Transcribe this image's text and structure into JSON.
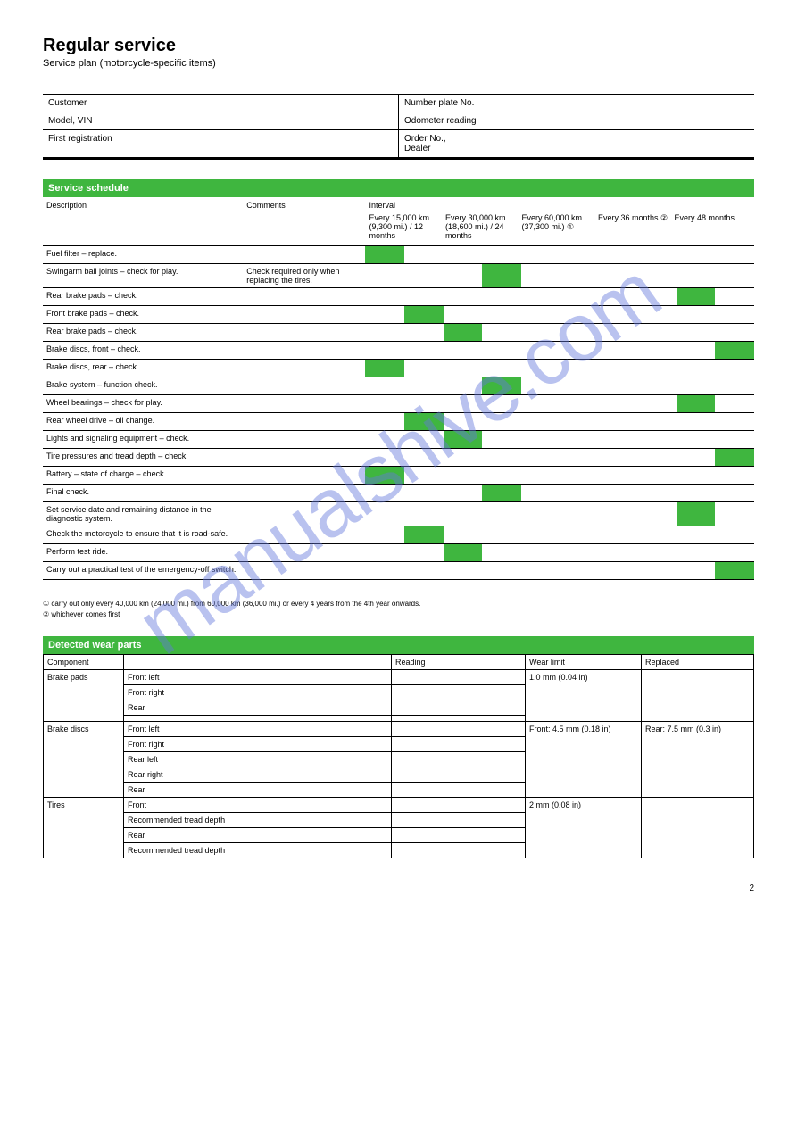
{
  "watermark": "manualshive.com",
  "header": {
    "title": "Regular service",
    "subtitle": "Service plan (motorcycle-specific items)"
  },
  "top_info": {
    "rows": [
      {
        "left_label": "Customer",
        "left_value": "",
        "right_label": "Number plate No.",
        "right_value": ""
      },
      {
        "left_label": "Model, VIN",
        "left_value": "",
        "right_label": "Odometer reading",
        "right_value": ""
      },
      {
        "left_label": "First registration",
        "left_value": "",
        "right_label": "Order No.,\nDealer",
        "right_value": ""
      }
    ]
  },
  "colors": {
    "bar_bg": "#3fb63f",
    "bar_text": "#ffffff",
    "border": "#000000",
    "page_bg": "#ffffff"
  },
  "schedule": {
    "bar_label": "Service schedule",
    "head": {
      "description": "Description",
      "comments": "Comments",
      "interval": "Interval",
      "intervals": [
        "Every 15,000 km (9,300 mi.) / 12 months",
        "Every 30,000 km (18,600 mi.) / 24 months",
        "Every 60,000 km (37,300 mi.)",
        "Every 36 months",
        "Every 48 months"
      ],
      "sup1_target_col": 3,
      "sup2_target_col": 4
    },
    "rows": [
      {
        "desc": "Fuel filter – replace.",
        "fills": [
          1,
          0,
          0,
          0,
          0
        ]
      },
      {
        "desc": "Swingarm ball joints – check for play.",
        "comments": "Check required only when replacing the tires.",
        "fills": [
          0,
          1,
          0,
          0,
          0
        ]
      },
      {
        "desc": "Rear brake pads – check.",
        "fills": [
          0,
          0,
          0,
          0,
          1
        ]
      },
      {
        "desc": "Front brake pads – check.",
        "fills": [
          1,
          0,
          0,
          0,
          0
        ]
      },
      {
        "desc": "Rear brake pads – check.",
        "fills": [
          0,
          1,
          0,
          0,
          0
        ]
      },
      {
        "desc": "Brake discs, front – check.",
        "fills": [
          0,
          0,
          0,
          0,
          1
        ]
      },
      {
        "desc": "Brake discs, rear – check.",
        "fills": [
          1,
          0,
          0,
          0,
          0
        ]
      },
      {
        "desc": "Brake system – function check.",
        "fills": [
          0,
          1,
          0,
          0,
          0
        ]
      },
      {
        "desc": "Wheel bearings – check for play.",
        "fills": [
          0,
          0,
          0,
          0,
          1
        ]
      },
      {
        "desc": "Rear wheel drive – oil change.",
        "fills": [
          1,
          0,
          0,
          0,
          0
        ]
      },
      {
        "desc": "Lights and signaling equipment – check.",
        "fills": [
          0,
          1,
          0,
          0,
          0
        ]
      },
      {
        "desc": "Tire pressures and tread depth – check.",
        "fills": [
          0,
          0,
          0,
          0,
          1
        ]
      },
      {
        "desc": "Battery – state of charge – check.",
        "fills": [
          1,
          0,
          0,
          0,
          0
        ]
      },
      {
        "desc": "Final check.",
        "fills": [
          0,
          1,
          0,
          0,
          0
        ]
      },
      {
        "desc": "Set service date and remaining distance in the diagnostic system.",
        "fills": [
          0,
          0,
          0,
          0,
          1
        ]
      },
      {
        "desc": "Check the motorcycle to ensure that it is road-safe.",
        "fills": [
          1,
          0,
          0,
          0,
          0
        ]
      },
      {
        "desc": "Perform test ride.",
        "fills": [
          0,
          1,
          0,
          0,
          0
        ]
      },
      {
        "desc": "Carry out a practical test of the emergency-off switch.",
        "fills": [
          0,
          0,
          0,
          0,
          1
        ]
      }
    ],
    "footnotes": [
      "① carry out only every 40,000 km (24,000 mi.) from 60,000 km (36,000 mi.) or every 4 years from the 4th year onwards.",
      "② whichever comes first"
    ]
  },
  "wear_parts": {
    "bar_label": "Detected wear parts",
    "head": [
      "Component",
      "",
      "Reading",
      "Wear limit",
      "Replaced"
    ],
    "groups": [
      {
        "component": "Brake pads",
        "items": [
          "Front left",
          "Front right",
          "Rear",
          ""
        ],
        "wear_limit": "1.0 mm (0.04 in)",
        "replaced": ""
      },
      {
        "component": "Brake discs",
        "items": [
          "Front left",
          "Front right",
          "Rear left",
          "Rear right",
          "Rear"
        ],
        "wear_limit": "Front: 4.5 mm (0.18 in)",
        "replaced": "Rear: 7.5 mm (0.3 in)"
      },
      {
        "component": "Tires",
        "items": [
          "Front",
          "Recommended tread depth",
          "Rear",
          "Recommended tread depth"
        ],
        "wear_limit": "2 mm (0.08 in)",
        "replaced": ""
      }
    ]
  },
  "page_number": "2"
}
